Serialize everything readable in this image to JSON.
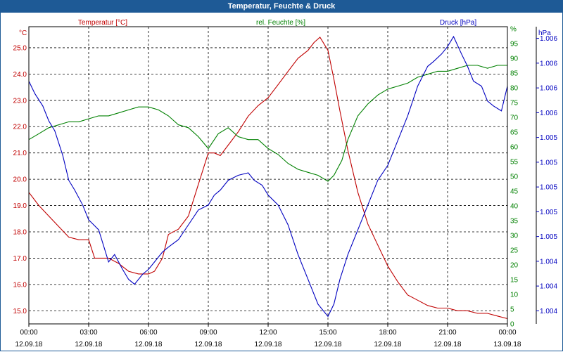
{
  "window": {
    "title": "Temperatur, Feuchte & Druck"
  },
  "colors": {
    "temperature": "#c00000",
    "humidity": "#008000",
    "pressure": "#0000c0",
    "grid": "#000000",
    "titlebar": "#1e5a96"
  },
  "chart_data": {
    "type": "line",
    "grid": true,
    "x_ticks": [
      {
        "time": "00:00",
        "date": "12.09.18"
      },
      {
        "time": "03:00",
        "date": "12.09.18"
      },
      {
        "time": "06:00",
        "date": "12.09.18"
      },
      {
        "time": "09:00",
        "date": "12.09.18"
      },
      {
        "time": "12:00",
        "date": "12.09.18"
      },
      {
        "time": "15:00",
        "date": "12.09.18"
      },
      {
        "time": "18:00",
        "date": "12.09.18"
      },
      {
        "time": "21:00",
        "date": "12.09.18"
      },
      {
        "time": "00:00",
        "date": "13.09.18"
      }
    ],
    "x_range_hours": [
      0,
      24
    ],
    "axes": {
      "temperature": {
        "label": "Temperatur [°C]",
        "unit": "°C",
        "range": [
          14.5,
          25.8
        ],
        "ticks": [
          "25.0",
          "24.0",
          "23.0",
          "22.0",
          "21.0",
          "20.0",
          "19.0",
          "18.0",
          "17.0",
          "16.0",
          "15.0"
        ],
        "tick_values": [
          25,
          24,
          23,
          22,
          21,
          20,
          19,
          18,
          17,
          16,
          15
        ]
      },
      "humidity": {
        "label": "rel. Feuchte [%]",
        "range": [
          0,
          100
        ],
        "ticks": [
          "0",
          "5",
          "10",
          "15",
          "20",
          "25",
          "30",
          "35",
          "40",
          "45",
          "50",
          "55",
          "60",
          "65",
          "70",
          "75",
          "80",
          "85",
          "90",
          "95",
          "%"
        ]
      },
      "pressure": {
        "label": "Druck [hPa]",
        "unit": "hPa",
        "range": [
          0,
          12
        ],
        "ticks": [
          "1.004",
          "1.004",
          "1.004",
          "1.005",
          "1.005",
          "1.005",
          "1.005",
          "1.005",
          "1.006",
          "1.006",
          "1.006",
          "1.006"
        ]
      }
    },
    "series": [
      {
        "name": "Temperatur [°C]",
        "axis": "temperature",
        "x": [
          0,
          0.5,
          1,
          1.5,
          2,
          2.5,
          3,
          3.3,
          3.7,
          4,
          4.5,
          5,
          5.5,
          6,
          6.3,
          6.7,
          7,
          7.5,
          8,
          8.5,
          9,
          9.3,
          9.6,
          10,
          10.5,
          11,
          11.5,
          12,
          12.5,
          13,
          13.5,
          14,
          14.3,
          14.6,
          15,
          15.3,
          15.6,
          16,
          16.5,
          17,
          17.5,
          18,
          18.5,
          19,
          19.5,
          20,
          20.5,
          21,
          21.5,
          22,
          22.5,
          23,
          23.5,
          24
        ],
        "values": [
          19.5,
          19.0,
          18.6,
          18.2,
          17.8,
          17.7,
          17.7,
          17.0,
          17.0,
          17.0,
          16.8,
          16.5,
          16.4,
          16.4,
          16.5,
          17.0,
          17.9,
          18.1,
          18.6,
          19.8,
          21.0,
          21.0,
          20.9,
          21.3,
          21.8,
          22.4,
          22.8,
          23.1,
          23.6,
          24.1,
          24.6,
          24.9,
          25.2,
          25.4,
          24.9,
          23.8,
          22.6,
          21.1,
          19.5,
          18.3,
          17.5,
          16.7,
          16.1,
          15.6,
          15.4,
          15.2,
          15.1,
          15.1,
          15.0,
          15.0,
          14.9,
          14.9,
          14.8,
          14.7
        ]
      },
      {
        "name": "rel. Feuchte [%]",
        "axis": "humidity",
        "x": [
          0,
          0.5,
          1,
          1.5,
          2,
          2.5,
          3,
          3.5,
          4,
          4.5,
          5,
          5.5,
          6,
          6.5,
          7,
          7.5,
          8,
          8.5,
          9,
          9.5,
          10,
          10.5,
          11,
          11.5,
          12,
          12.5,
          13,
          13.5,
          14,
          14.5,
          15,
          15.3,
          15.7,
          16,
          16.5,
          17,
          17.5,
          18,
          18.5,
          19,
          19.5,
          20,
          20.5,
          21,
          21.5,
          22,
          22.5,
          23,
          23.5,
          24
        ],
        "values": [
          62,
          64,
          66,
          67,
          68,
          68,
          69,
          70,
          70,
          71,
          72,
          73,
          73,
          72,
          70,
          67,
          66,
          63,
          59,
          64,
          66,
          63,
          62,
          62,
          59,
          57,
          54,
          52,
          51,
          50,
          48,
          50,
          55,
          62,
          70,
          74,
          77,
          79,
          80,
          81,
          83,
          84,
          85,
          85,
          86,
          87,
          87,
          86,
          87,
          87
        ]
      },
      {
        "name": "Druck [hPa]",
        "axis": "pressure",
        "x": [
          0,
          0.3,
          0.7,
          1,
          1.3,
          1.7,
          2,
          2.3,
          2.7,
          3,
          3.5,
          4,
          4.3,
          4.7,
          5,
          5.3,
          5.7,
          6,
          6.3,
          6.7,
          7,
          7.5,
          8,
          8.5,
          9,
          9.3,
          9.6,
          10,
          10.5,
          11,
          11.3,
          11.7,
          12,
          12.5,
          13,
          13.5,
          14,
          14.5,
          15,
          15.3,
          15.6,
          16,
          16.5,
          17,
          17.5,
          18,
          18.5,
          19,
          19.5,
          20,
          20.3,
          20.7,
          21,
          21.3,
          21.7,
          22,
          22.3,
          22.7,
          23,
          23.3,
          23.7,
          24
        ],
        "values": [
          9.8,
          9.3,
          8.8,
          8.2,
          7.8,
          6.8,
          5.8,
          5.4,
          4.8,
          4.2,
          3.8,
          2.5,
          2.8,
          2.2,
          1.8,
          1.6,
          2.0,
          2.2,
          2.5,
          2.9,
          3.1,
          3.4,
          4.0,
          4.6,
          4.8,
          5.2,
          5.4,
          5.8,
          6.0,
          6.1,
          5.8,
          5.6,
          5.2,
          4.8,
          4.0,
          2.8,
          1.8,
          0.8,
          0.3,
          0.8,
          1.8,
          2.8,
          3.8,
          4.8,
          5.8,
          6.4,
          7.4,
          8.4,
          9.6,
          10.4,
          10.6,
          10.9,
          11.2,
          11.6,
          10.9,
          10.4,
          9.8,
          9.6,
          9.0,
          8.8,
          8.6,
          9.6
        ]
      }
    ]
  }
}
